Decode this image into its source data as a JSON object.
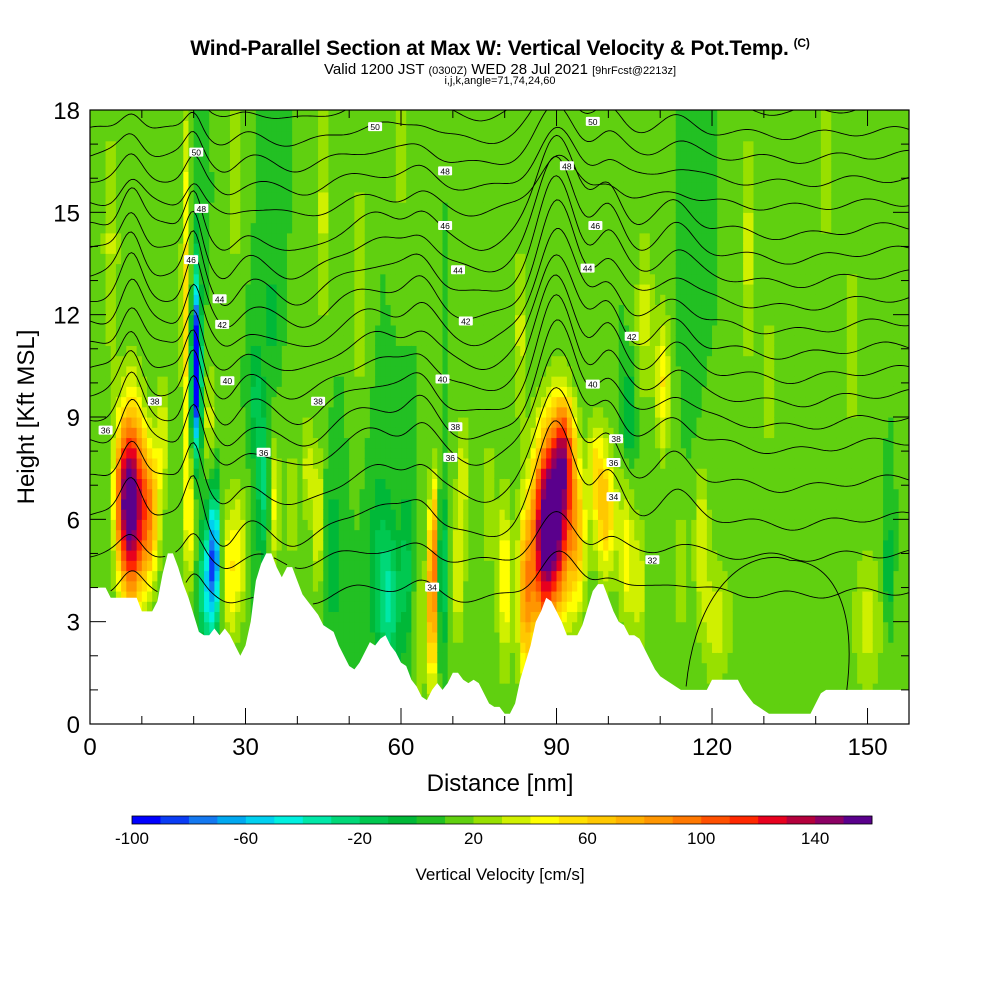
{
  "header": {
    "title": "Wind-Parallel Section at Max W: Vertical Velocity & Pot.Temp.",
    "title_suffix": "(C)",
    "valid_prefix": "Valid 1200 JST",
    "valid_zulu": "(0300Z)",
    "valid_date": "WED 28 Jul 2021",
    "forecast": "[9hrFcst@2213z]",
    "indices": "i,j,k,angle=71,74,24,60"
  },
  "chart_data": {
    "type": "heatmap",
    "xlabel": "Distance [nm]",
    "ylabel": "Height [Kft MSL]",
    "xlim": [
      0,
      158
    ],
    "ylim": [
      0,
      18
    ],
    "x_ticks": [
      0,
      30,
      60,
      90,
      120,
      150
    ],
    "y_ticks": [
      0,
      3,
      6,
      9,
      12,
      15,
      18
    ],
    "background_w": 10,
    "terrain": [
      [
        0,
        4
      ],
      [
        1,
        4
      ],
      [
        3,
        4
      ],
      [
        4,
        3.7
      ],
      [
        9,
        3.7
      ],
      [
        10,
        3.3
      ],
      [
        12,
        3.3
      ],
      [
        13,
        3.6
      ],
      [
        14,
        4.4
      ],
      [
        15,
        5
      ],
      [
        16,
        5
      ],
      [
        17,
        4.6
      ],
      [
        18,
        4.1
      ],
      [
        19,
        3.7
      ],
      [
        20,
        3.2
      ],
      [
        21,
        2.7
      ],
      [
        22,
        2.6
      ],
      [
        23,
        2.6
      ],
      [
        24,
        2.8
      ],
      [
        25,
        2.6
      ],
      [
        26,
        2.8
      ],
      [
        27,
        2.6
      ],
      [
        28,
        2.3
      ],
      [
        29,
        2.0
      ],
      [
        30,
        2.3
      ],
      [
        31,
        3.0
      ],
      [
        32,
        4.2
      ],
      [
        33,
        4.7
      ],
      [
        34,
        5.0
      ],
      [
        35,
        5.0
      ],
      [
        36,
        4.6
      ],
      [
        37,
        4.3
      ],
      [
        38,
        4.6
      ],
      [
        39,
        4.6
      ],
      [
        40,
        4.2
      ],
      [
        41,
        3.8
      ],
      [
        42,
        3.6
      ],
      [
        43,
        3.4
      ],
      [
        44,
        3.2
      ],
      [
        45,
        2.9
      ],
      [
        46,
        2.8
      ],
      [
        47,
        2.7
      ],
      [
        48,
        2.3
      ],
      [
        49,
        2.0
      ],
      [
        50,
        1.7
      ],
      [
        51,
        1.6
      ],
      [
        52,
        1.8
      ],
      [
        53,
        2.1
      ],
      [
        54,
        2.4
      ],
      [
        55,
        2.3
      ],
      [
        56,
        2.5
      ],
      [
        57,
        2.6
      ],
      [
        58,
        2.3
      ],
      [
        59,
        2.1
      ],
      [
        60,
        1.8
      ],
      [
        61,
        1.7
      ],
      [
        62,
        1.3
      ],
      [
        63,
        1.1
      ],
      [
        64,
        0.8
      ],
      [
        65,
        0.7
      ],
      [
        66,
        1.0
      ],
      [
        67,
        1.2
      ],
      [
        68,
        1.0
      ],
      [
        69,
        1.2
      ],
      [
        70,
        1.5
      ],
      [
        71,
        1.5
      ],
      [
        72,
        1.3
      ],
      [
        73,
        1.2
      ],
      [
        74,
        1.3
      ],
      [
        75,
        1.2
      ],
      [
        76,
        0.9
      ],
      [
        77,
        0.6
      ],
      [
        78,
        0.5
      ],
      [
        79,
        0.5
      ],
      [
        80,
        0.3
      ],
      [
        81,
        0.3
      ],
      [
        82,
        0.6
      ],
      [
        83,
        1.3
      ],
      [
        84,
        1.8
      ],
      [
        85,
        2.3
      ],
      [
        86,
        3.0
      ],
      [
        87,
        3.3
      ],
      [
        88,
        3.7
      ],
      [
        89,
        3.6
      ],
      [
        90,
        3.3
      ],
      [
        91,
        3.0
      ],
      [
        92,
        2.6
      ],
      [
        93,
        2.6
      ],
      [
        94,
        2.6
      ],
      [
        95,
        2.9
      ],
      [
        96,
        3.4
      ],
      [
        97,
        3.9
      ],
      [
        98,
        4.1
      ],
      [
        99,
        4.1
      ],
      [
        100,
        3.7
      ],
      [
        101,
        3.3
      ],
      [
        102,
        3.0
      ],
      [
        103,
        2.9
      ],
      [
        104,
        2.6
      ],
      [
        105,
        2.6
      ],
      [
        106,
        2.5
      ],
      [
        107,
        2.2
      ],
      [
        108,
        1.9
      ],
      [
        109,
        1.6
      ],
      [
        110,
        1.4
      ],
      [
        111,
        1.3
      ],
      [
        112,
        1.2
      ],
      [
        113,
        1.1
      ],
      [
        114,
        1.0
      ],
      [
        119,
        1.0
      ],
      [
        120,
        1.3
      ],
      [
        121,
        1.3
      ],
      [
        125,
        1.3
      ],
      [
        126,
        1.0
      ],
      [
        127,
        0.8
      ],
      [
        128,
        0.6
      ],
      [
        129,
        0.5
      ],
      [
        130,
        0.4
      ],
      [
        131,
        0.3
      ],
      [
        139,
        0.3
      ],
      [
        140,
        0.6
      ],
      [
        141,
        0.9
      ],
      [
        142,
        1.0
      ],
      [
        155,
        1.0
      ],
      [
        156,
        1.0
      ],
      [
        158,
        1.0
      ]
    ],
    "w_cells": [
      {
        "x": 8,
        "z": 6.4,
        "sx": 1.7,
        "sz": 2.0,
        "w": 150
      },
      {
        "x": 11.5,
        "z": 6.2,
        "sx": 1.3,
        "sz": 1.4,
        "w": 70
      },
      {
        "x": 6,
        "z": 6.8,
        "sx": 1.0,
        "sz": 1.4,
        "w": 45
      },
      {
        "x": 14,
        "z": 8.5,
        "sx": 1.0,
        "sz": 1.3,
        "w": 25
      },
      {
        "x": 18.5,
        "z": 12,
        "sx": 0.6,
        "sz": 4.5,
        "w": 45
      },
      {
        "x": 19.5,
        "z": 6,
        "sx": 0.7,
        "sz": 1.2,
        "w": 35
      },
      {
        "x": 20.5,
        "z": 10.2,
        "sx": 0.7,
        "sz": 1.5,
        "w": -85
      },
      {
        "x": 20.5,
        "z": 11.3,
        "sx": 0.5,
        "sz": 2.0,
        "w": -50
      },
      {
        "x": 23,
        "z": 9,
        "sx": 0.9,
        "sz": 1.2,
        "w": 25
      },
      {
        "x": 24,
        "z": 5.0,
        "sx": 0.7,
        "sz": 1.3,
        "w": -85
      },
      {
        "x": 22.5,
        "z": 4.0,
        "sx": 1.1,
        "sz": 1.3,
        "w": -55
      },
      {
        "x": 27,
        "z": 4.5,
        "sx": 1.0,
        "sz": 1.5,
        "w": 40
      },
      {
        "x": 29,
        "z": 5.0,
        "sx": 0.8,
        "sz": 1.4,
        "w": 30
      },
      {
        "x": 33.5,
        "z": 7.0,
        "sx": 0.9,
        "sz": 1.6,
        "w": -35
      },
      {
        "x": 32,
        "z": 9.5,
        "sx": 0.8,
        "sz": 1.2,
        "w": -25
      },
      {
        "x": 35.5,
        "z": 6.5,
        "sx": 0.8,
        "sz": 1.4,
        "w": 35
      },
      {
        "x": 39,
        "z": 6.5,
        "sx": 0.7,
        "sz": 1.5,
        "w": 20
      },
      {
        "x": 44,
        "z": 6,
        "sx": 0.7,
        "sz": 1.5,
        "w": 35
      },
      {
        "x": 42,
        "z": 7.5,
        "sx": 0.8,
        "sz": 1.2,
        "w": 25
      },
      {
        "x": 47,
        "z": 5,
        "sx": 1.2,
        "sz": 1.5,
        "w": -20
      },
      {
        "x": 56,
        "z": 4.5,
        "sx": 1.5,
        "sz": 2.0,
        "w": -25
      },
      {
        "x": 58,
        "z": 3.5,
        "sx": 1.2,
        "sz": 1.4,
        "w": -35
      },
      {
        "x": 61,
        "z": 4.5,
        "sx": 0.9,
        "sz": 1.6,
        "w": -25
      },
      {
        "x": 63.5,
        "z": 2.5,
        "sx": 0.9,
        "sz": 2.0,
        "w": 15
      },
      {
        "x": 66,
        "z": 3.5,
        "sx": 0.7,
        "sz": 1.8,
        "w": 75
      },
      {
        "x": 66.5,
        "z": 5.5,
        "sx": 0.6,
        "sz": 1.5,
        "w": 45
      },
      {
        "x": 68,
        "z": 4.5,
        "sx": 0.7,
        "sz": 1.5,
        "w": -40
      },
      {
        "x": 71,
        "z": 4.5,
        "sx": 1.0,
        "sz": 1.5,
        "w": 30
      },
      {
        "x": 72,
        "z": 7.5,
        "sx": 0.8,
        "sz": 1.2,
        "w": 25
      },
      {
        "x": 77,
        "z": 6.5,
        "sx": 0.9,
        "sz": 1.5,
        "w": 20
      },
      {
        "x": 80,
        "z": 4.2,
        "sx": 1.0,
        "sz": 1.8,
        "w": 40
      },
      {
        "x": 84,
        "z": 3.8,
        "sx": 1.1,
        "sz": 1.8,
        "w": 65
      },
      {
        "x": 89.5,
        "z": 6.0,
        "sx": 2.2,
        "sz": 1.9,
        "w": 145
      },
      {
        "x": 87,
        "z": 5.0,
        "sx": 1.6,
        "sz": 2.1,
        "w": 70
      },
      {
        "x": 91.5,
        "z": 8.0,
        "sx": 1.4,
        "sz": 1.2,
        "w": 75
      },
      {
        "x": 94,
        "z": 5.5,
        "sx": 1.3,
        "sz": 1.6,
        "w": 50
      },
      {
        "x": 99.5,
        "z": 6.2,
        "sx": 1.4,
        "sz": 1.4,
        "w": 55
      },
      {
        "x": 97.5,
        "z": 7.5,
        "sx": 1.0,
        "sz": 1.0,
        "w": 35
      },
      {
        "x": 103.5,
        "z": 5.0,
        "sx": 1.0,
        "sz": 1.6,
        "w": 35
      },
      {
        "x": 106,
        "z": 4.0,
        "sx": 1.0,
        "sz": 1.5,
        "w": 25
      },
      {
        "x": 104,
        "z": 9.0,
        "sx": 0.8,
        "sz": 1.0,
        "w": -25
      },
      {
        "x": 110.5,
        "z": 10.0,
        "sx": 1.0,
        "sz": 1.5,
        "w": 40
      },
      {
        "x": 107,
        "z": 12,
        "sx": 1.2,
        "sz": 1.8,
        "w": 25
      },
      {
        "x": 118,
        "z": 5.5,
        "sx": 1.0,
        "sz": 1.5,
        "w": 30
      },
      {
        "x": 114,
        "z": 4.5,
        "sx": 1.0,
        "sz": 1.4,
        "w": 20
      },
      {
        "x": 121,
        "z": 3.0,
        "sx": 2.2,
        "sz": 1.4,
        "w": 25
      },
      {
        "x": 150,
        "z": 3.0,
        "sx": 2.0,
        "sz": 1.5,
        "w": 25
      },
      {
        "x": 154,
        "z": 4.5,
        "sx": 0.5,
        "sz": 1.0,
        "w": -30
      },
      {
        "x": 135,
        "z": 5.5,
        "sx": 3.0,
        "sz": 1.5,
        "w": 5
      },
      {
        "x": 45,
        "z": 15,
        "sx": 0.8,
        "sz": 2.5,
        "w": 25
      },
      {
        "x": 52,
        "z": 13,
        "sx": 1.0,
        "sz": 2.5,
        "w": 20
      },
      {
        "x": 83,
        "z": 11.5,
        "sx": 0.8,
        "sz": 2.0,
        "w": 25
      },
      {
        "x": 127,
        "z": 14.0,
        "sx": 1.0,
        "sz": 2.5,
        "w": 25
      },
      {
        "x": 142,
        "z": 16.5,
        "sx": 1.0,
        "sz": 2.0,
        "w": 20
      },
      {
        "x": 147,
        "z": 11,
        "sx": 1.0,
        "sz": 2.0,
        "w": 20
      },
      {
        "x": 131,
        "z": 10,
        "sx": 1.0,
        "sz": 1.5,
        "w": 20
      },
      {
        "x": 4,
        "z": 14,
        "sx": 1.2,
        "sz": 2.5,
        "w": 22
      },
      {
        "x": 28,
        "z": 16,
        "sx": 0.8,
        "sz": 2.0,
        "w": 22
      },
      {
        "x": 60,
        "z": 17,
        "sx": 1.0,
        "sz": 1.5,
        "w": 20
      },
      {
        "x": 35,
        "z": 12,
        "sx": 0.7,
        "sz": 1.5,
        "w": -15
      },
      {
        "x": 116,
        "z": 11,
        "sx": 1.0,
        "sz": 1.5,
        "w": -10
      }
    ],
    "theta_levels": [
      32,
      33,
      34,
      35,
      36,
      37,
      38,
      39,
      40,
      41,
      42,
      43,
      44,
      45,
      46,
      47,
      48,
      49,
      50,
      51
    ],
    "theta_bumps": [
      {
        "x": 8,
        "s": 2.0,
        "amp": 1.2
      },
      {
        "x": 20,
        "s": 1.5,
        "amp": 1.2
      },
      {
        "x": 26,
        "s": 2.5,
        "amp": -0.8
      },
      {
        "x": 40,
        "s": 5,
        "amp": -0.8
      },
      {
        "x": 55,
        "s": 4,
        "amp": 0.3
      },
      {
        "x": 64,
        "s": 2.5,
        "amp": 0.6
      },
      {
        "x": 75,
        "s": 6,
        "amp": -0.6
      },
      {
        "x": 90,
        "s": 3.5,
        "amp": 2.8
      },
      {
        "x": 100,
        "s": 2.5,
        "amp": 1.2
      },
      {
        "x": 113,
        "s": 3,
        "amp": 0.7
      },
      {
        "x": 135,
        "s": 8,
        "amp": -0.3
      }
    ],
    "theta_labels": [
      {
        "x": 3,
        "z": 8.6,
        "text": "36"
      },
      {
        "x": 12.5,
        "z": 9.45,
        "text": "38"
      },
      {
        "x": 26.5,
        "z": 10.05,
        "text": "40"
      },
      {
        "x": 25.5,
        "z": 11.7,
        "text": "42"
      },
      {
        "x": 25,
        "z": 12.45,
        "text": "44"
      },
      {
        "x": 19.5,
        "z": 13.6,
        "text": "46"
      },
      {
        "x": 21.5,
        "z": 15.1,
        "text": "48"
      },
      {
        "x": 20.5,
        "z": 16.75,
        "text": "50"
      },
      {
        "x": 44,
        "z": 9.45,
        "text": "38"
      },
      {
        "x": 33.5,
        "z": 7.95,
        "text": "36"
      },
      {
        "x": 55,
        "z": 17.5,
        "text": "50"
      },
      {
        "x": 68.5,
        "z": 16.2,
        "text": "48"
      },
      {
        "x": 68.5,
        "z": 14.6,
        "text": "46"
      },
      {
        "x": 71,
        "z": 13.3,
        "text": "44"
      },
      {
        "x": 72.5,
        "z": 11.8,
        "text": "42"
      },
      {
        "x": 68,
        "z": 10.1,
        "text": "40"
      },
      {
        "x": 70.5,
        "z": 8.7,
        "text": "38"
      },
      {
        "x": 69.5,
        "z": 7.8,
        "text": "36"
      },
      {
        "x": 66,
        "z": 4.0,
        "text": "34"
      },
      {
        "x": 97,
        "z": 17.65,
        "text": "50"
      },
      {
        "x": 92,
        "z": 16.35,
        "text": "48"
      },
      {
        "x": 97.5,
        "z": 14.6,
        "text": "46"
      },
      {
        "x": 96,
        "z": 13.35,
        "text": "44"
      },
      {
        "x": 104.5,
        "z": 11.35,
        "text": "42"
      },
      {
        "x": 97,
        "z": 9.95,
        "text": "40"
      },
      {
        "x": 101.5,
        "z": 8.35,
        "text": "38"
      },
      {
        "x": 101,
        "z": 7.65,
        "text": "36"
      },
      {
        "x": 101,
        "z": 6.65,
        "text": "34"
      },
      {
        "x": 108.5,
        "z": 4.8,
        "text": "32"
      }
    ]
  },
  "colorbar": {
    "label": "Vertical Velocity [cm/s]",
    "min": -100,
    "max": 160,
    "step": 10,
    "tick_labels": [
      "-100",
      "-60",
      "-20",
      "20",
      "60",
      "100",
      "140"
    ],
    "tick_values": [
      -100,
      -60,
      -20,
      20,
      60,
      100,
      140
    ],
    "colors": [
      "#0000ff",
      "#0a3cf5",
      "#1478f0",
      "#00a8f0",
      "#00d0f0",
      "#00f0e0",
      "#00e8a8",
      "#00d878",
      "#00c850",
      "#00b838",
      "#22c023",
      "#60d010",
      "#98e000",
      "#d0f000",
      "#ffff00",
      "#ffe000",
      "#ffc800",
      "#ffb000",
      "#ff9600",
      "#ff7800",
      "#ff5000",
      "#ff2800",
      "#e8001e",
      "#b4003c",
      "#8c0064",
      "#5a008c"
    ]
  }
}
